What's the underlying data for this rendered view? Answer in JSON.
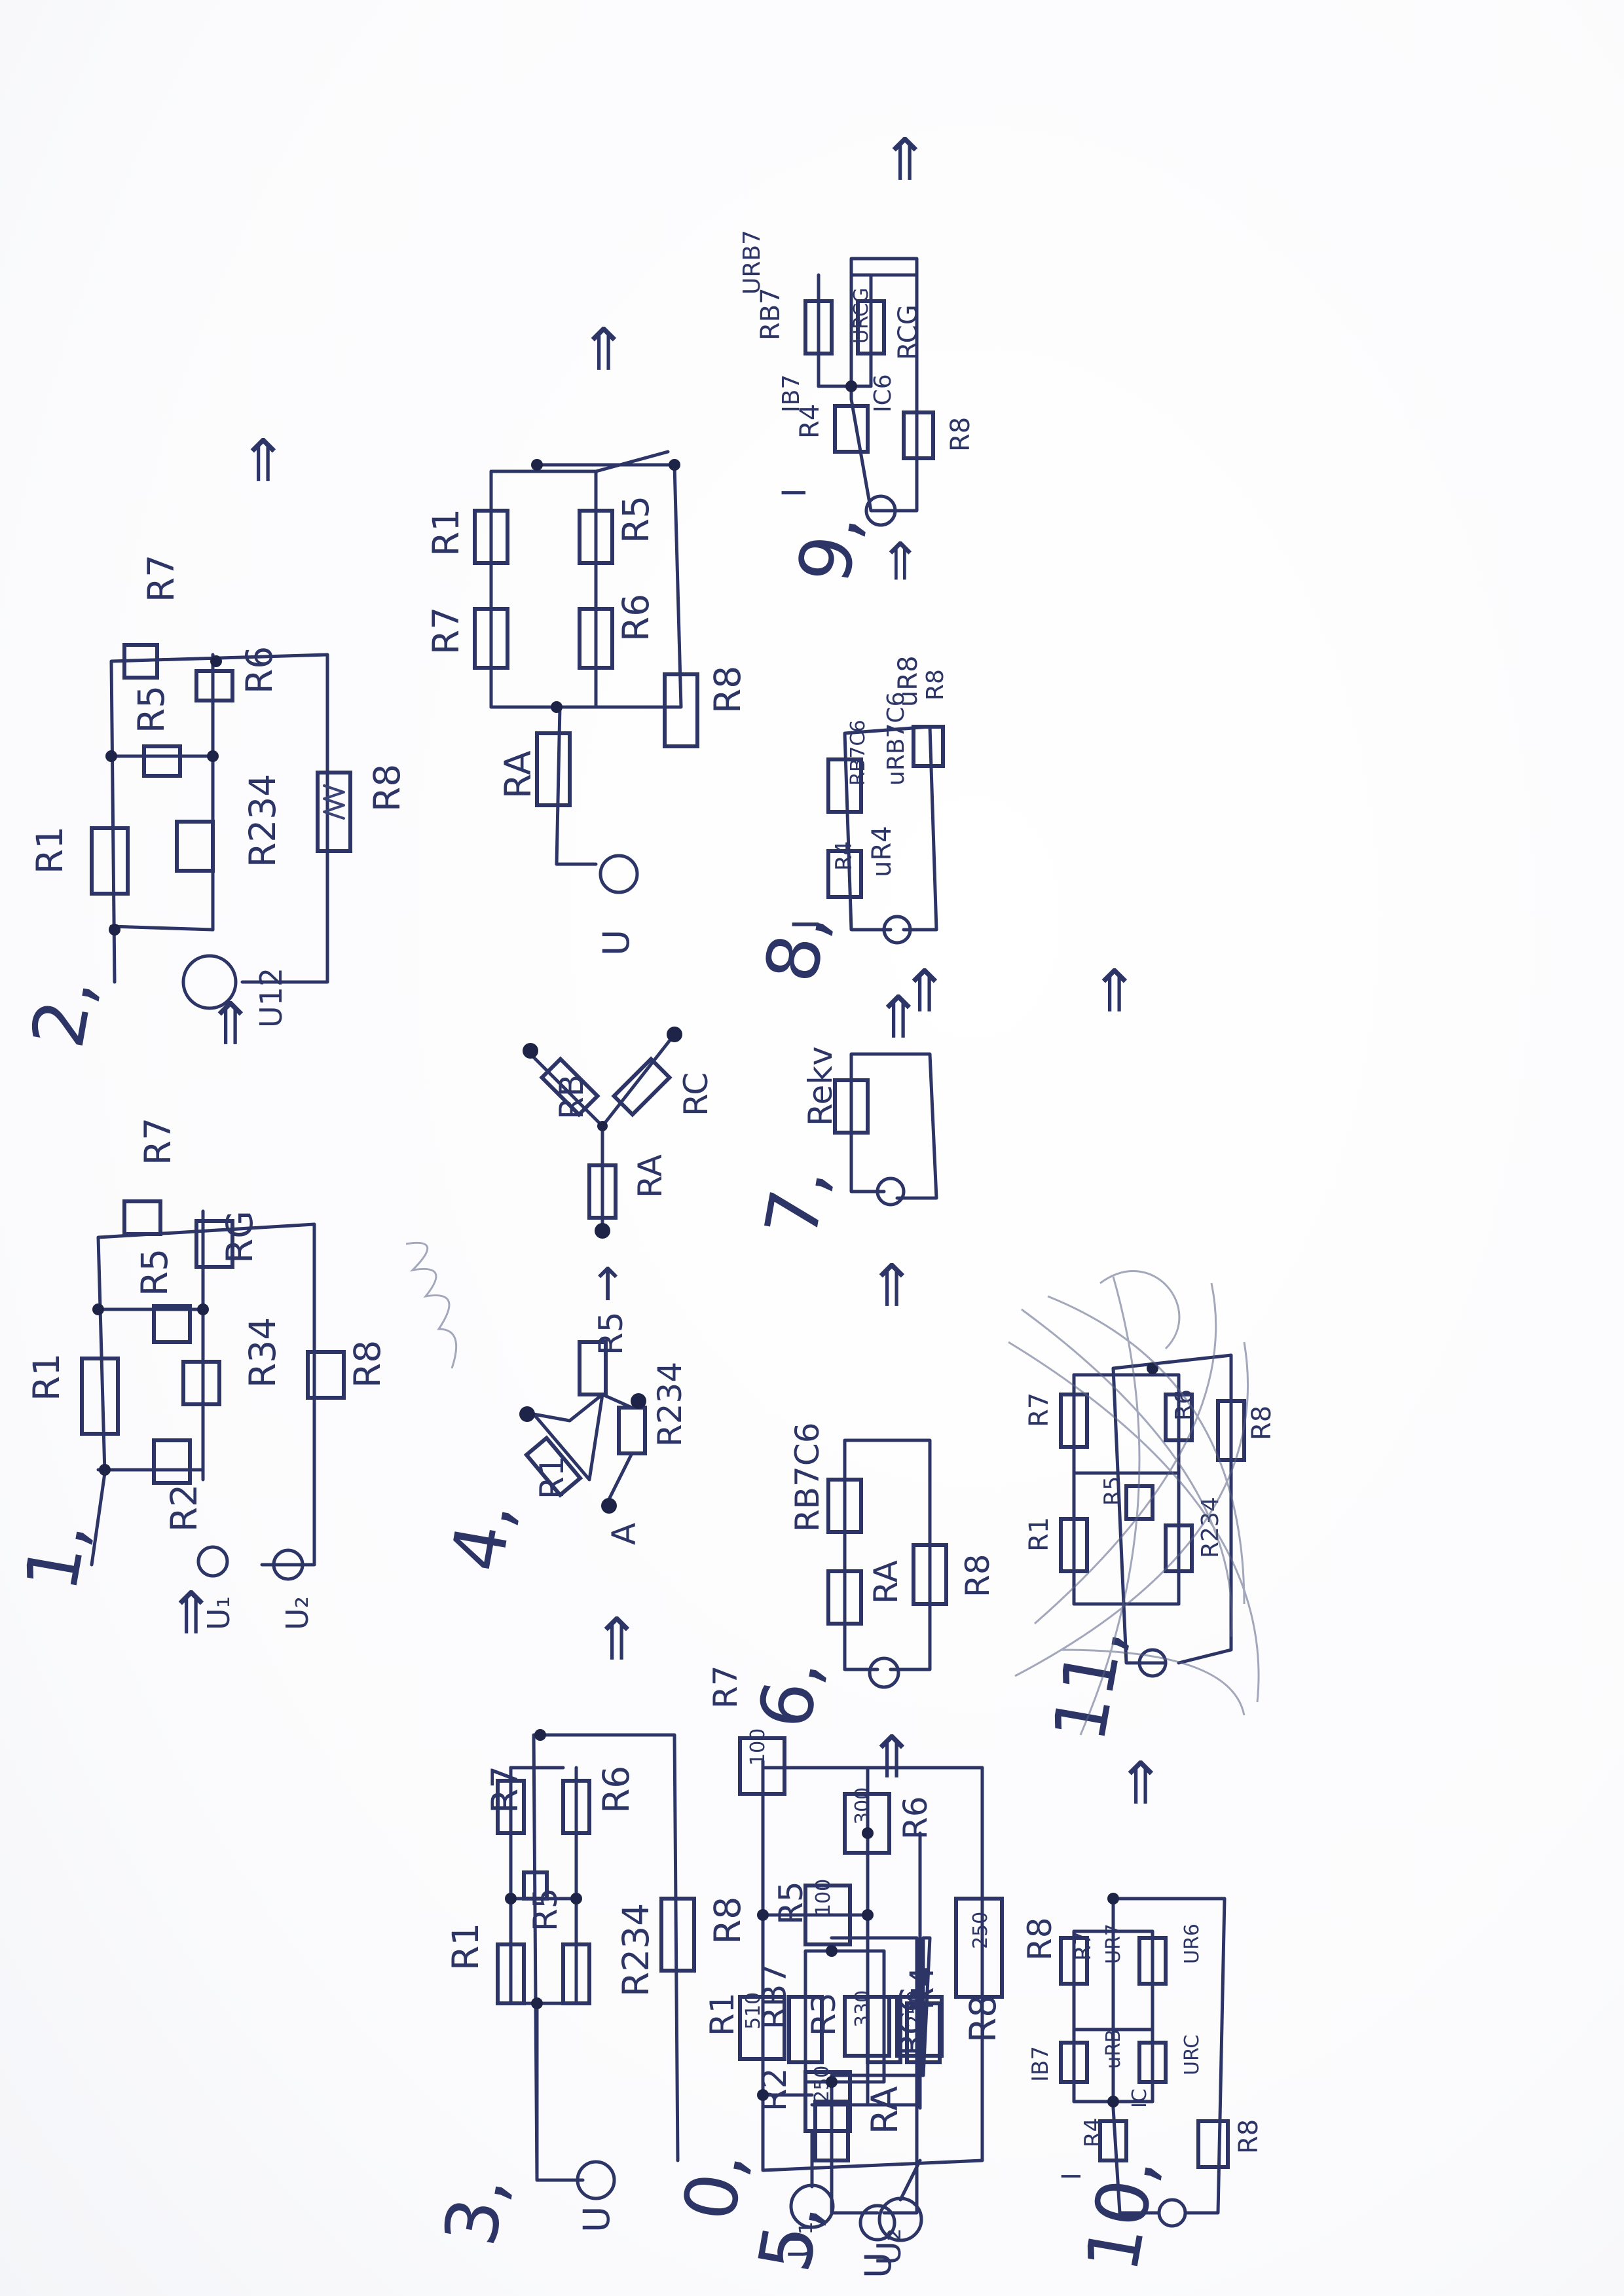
{
  "steps": {
    "s0": {
      "index": "0,",
      "sources": [
        "U₁",
        "U₂"
      ],
      "r1": "R1",
      "r1_val": "510",
      "r2": "R2",
      "r2_val": "250",
      "r3": "R3",
      "r3_val": "330",
      "r4": "R4",
      "r4_val": "250",
      "r5": "R5",
      "r5_val": "100",
      "r6": "R6",
      "r6_val": "300",
      "r7": "R7",
      "r7_val": "100",
      "r8": "R8",
      "r8_val": "250"
    },
    "s1": {
      "index": "1,",
      "sources": [
        "U₁",
        "U₂"
      ],
      "r1": "R1",
      "r2": "R2",
      "r5": "R5",
      "r6": "RG",
      "r7": "R7",
      "r34": "R34",
      "r8": "R8",
      "arrow": "⇒"
    },
    "s2": {
      "index": "2,",
      "source": "U12",
      "r1": "R1",
      "r5": "R5",
      "r6": "R6",
      "r7": "R7",
      "r234": "R234",
      "r8": "R8",
      "arrow": "⇒"
    },
    "s3": {
      "index": "3,",
      "source": "U",
      "r1": "R1",
      "r5": "R5",
      "r6": "R6",
      "r7": "R7",
      "r234": "R234",
      "r8": "R8",
      "arrow": "⇒"
    },
    "s4": {
      "index": "4,",
      "left": [
        "R1",
        "R5",
        "R234",
        "A"
      ],
      "right": [
        "RB",
        "RC",
        "RA"
      ],
      "arrow": "→"
    },
    "s5": {
      "index": "5,",
      "source": "U",
      "r4": "RA",
      "rb7": "RB7",
      "rc6": "RCG",
      "r8": "R8",
      "arrow": "⇒"
    },
    "s6": {
      "index": "6,",
      "r4": "RA",
      "rb7c6": "RB7C6",
      "r8": "R8",
      "arrow": "⇒"
    },
    "s7": {
      "index": "7,",
      "rekv": "Rekv",
      "arrow": "⇒"
    },
    "s8": {
      "index": "8,",
      "current": "I",
      "r4": "R4",
      "u4": "uR4",
      "rb7c6": "RB7C6",
      "u_b7c6": "uRB7C6",
      "u8": "uR8",
      "r8": "R8",
      "arrow": "⇒"
    },
    "s9": {
      "index": "9,",
      "current": "I",
      "ib7": "IB7",
      "ic6": "IC6",
      "r4": "R4",
      "rb7": "RB7",
      "urb7": "URB7",
      "rc6": "RCG",
      "urc6": "URCG",
      "r8": "R8",
      "arrow": "⇒"
    },
    "s10": {
      "index": "10,",
      "current": "I",
      "ib7": "IB7",
      "r4": "R4",
      "r7": "R7",
      "urb": "uRB",
      "ur7": "UR7",
      "ic": "IC",
      "urc": "URC",
      "ur6": "UR6",
      "r8": "R8",
      "ib": "IB",
      "ic6": "IC6",
      "arrow": "⇒"
    },
    "s11": {
      "index": "11,",
      "r1": "R1",
      "r234": "R234",
      "r5": "R5",
      "r6": "R6",
      "r7": "R7",
      "r8": "R8",
      "arrow": "⇒"
    }
  }
}
